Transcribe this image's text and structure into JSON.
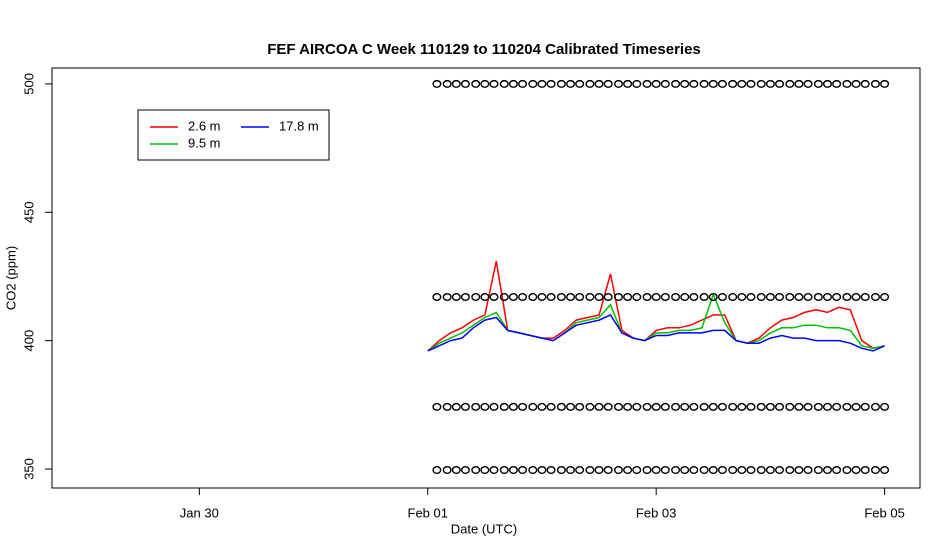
{
  "chart_data": {
    "type": "line",
    "title": "FEF AIRCOA C  Week 110129 to 110204  Calibrated Timeseries",
    "x_label": "Date (UTC)",
    "y_label": "CO2 (ppm)",
    "xlim": [
      28.71,
      36.31
    ],
    "xticks": [
      {
        "value": 30,
        "label": "Jan 30"
      },
      {
        "value": 32,
        "label": "Feb 01"
      },
      {
        "value": 34,
        "label": "Feb 03"
      },
      {
        "value": 36,
        "label": "Feb 05"
      }
    ],
    "ylim": [
      342.6,
      506.2
    ],
    "yticks": [
      350,
      400,
      450,
      500
    ],
    "grid": false,
    "legend": "top-left",
    "x": [
      32.0,
      32.1,
      32.2,
      32.3,
      32.4,
      32.5,
      32.6,
      32.7,
      32.8,
      32.9,
      33.0,
      33.1,
      33.2,
      33.3,
      33.4,
      33.5,
      33.6,
      33.7,
      33.8,
      33.9,
      34.0,
      34.1,
      34.2,
      34.3,
      34.4,
      34.5,
      34.6,
      34.7,
      34.8,
      34.9,
      35.0,
      35.1,
      35.2,
      35.3,
      35.4,
      35.5,
      35.6,
      35.7,
      35.8,
      35.9,
      36.0
    ],
    "series": [
      {
        "name": "2.6 m",
        "color": "#ff0000",
        "values": [
          396,
          400,
          403,
          405,
          408,
          410,
          431,
          404,
          403,
          402,
          401,
          401,
          404,
          408,
          409,
          410,
          426,
          404,
          401,
          400,
          404,
          405,
          405,
          406,
          408,
          410,
          410,
          400,
          399,
          401,
          405,
          408,
          409,
          411,
          412,
          411,
          413,
          412,
          400,
          397,
          398
        ]
      },
      {
        "name": "9.5 m",
        "color": "#00c000",
        "values": [
          396,
          399,
          401,
          403,
          406,
          409,
          411,
          404,
          403,
          402,
          401,
          400,
          403,
          407,
          408,
          409,
          414,
          403,
          401,
          400,
          403,
          403,
          404,
          404,
          405,
          418,
          407,
          400,
          399,
          400,
          403,
          405,
          405,
          406,
          406,
          405,
          405,
          404,
          398,
          397,
          398
        ]
      },
      {
        "name": "17.8 m",
        "color": "#0000ff",
        "values": [
          396,
          398,
          400,
          401,
          405,
          408,
          409,
          404,
          403,
          402,
          401,
          400,
          403,
          406,
          407,
          408,
          410,
          403,
          401,
          400,
          402,
          402,
          403,
          403,
          403,
          404,
          404,
          400,
          399,
          399,
          401,
          402,
          401,
          401,
          400,
          400,
          400,
          399,
          397,
          396,
          398
        ]
      }
    ],
    "markers": {
      "color": "#000000",
      "x": [
        32.08,
        32.17,
        32.25,
        32.33,
        32.42,
        32.5,
        32.58,
        32.67,
        32.75,
        32.83,
        32.92,
        33.0,
        33.08,
        33.17,
        33.25,
        33.33,
        33.42,
        33.5,
        33.58,
        33.67,
        33.75,
        33.83,
        33.92,
        34.0,
        34.08,
        34.17,
        34.25,
        34.33,
        34.42,
        34.5,
        34.58,
        34.67,
        34.75,
        34.83,
        34.92,
        35.0,
        35.08,
        35.17,
        35.25,
        35.33,
        35.42,
        35.5,
        35.58,
        35.67,
        35.75,
        35.83,
        35.92,
        36.0
      ],
      "levels": [
        349.6,
        374.2,
        417,
        500
      ]
    }
  }
}
